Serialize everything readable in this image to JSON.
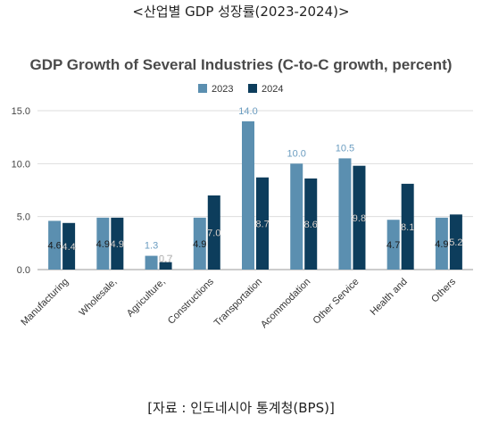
{
  "header": {
    "title": "<산업별 GDP 성장률(2023-2024)>"
  },
  "footer": {
    "source": "[자료 : 인도네시아 통계청(BPS)]"
  },
  "chart_data": {
    "type": "bar",
    "title": "GDP Growth of Several Industries (C-to-C growth, percent)",
    "categories": [
      "Manufacturing",
      "Wholesale,",
      "Agriculture,",
      "Constructions",
      "Transportation",
      "Acommodation",
      "Other Service",
      "Health and",
      "Others"
    ],
    "series": [
      {
        "name": "2023",
        "color": "#5b8fb0",
        "values": [
          4.6,
          4.9,
          1.3,
          4.9,
          14.0,
          10.0,
          10.5,
          4.7,
          4.9
        ],
        "labels": [
          "4.6",
          "4.9",
          "1.3",
          "4.9",
          "14.0",
          "10.0",
          "10.5",
          "4.7",
          "4.9"
        ]
      },
      {
        "name": "2024",
        "color": "#0d3d5c",
        "values": [
          4.4,
          4.9,
          0.7,
          7.0,
          8.7,
          8.6,
          9.8,
          8.1,
          5.2
        ],
        "labels": [
          "4.4",
          "4.9",
          "0.7",
          "7.0",
          "8.7",
          "8.6",
          "9.8",
          "8.1",
          "5.2"
        ]
      }
    ],
    "yticks": [
      "0.0",
      "5.0",
      "10.0",
      "15.0"
    ],
    "ylim": [
      0,
      15
    ],
    "grid": true,
    "legend": "top-center"
  }
}
